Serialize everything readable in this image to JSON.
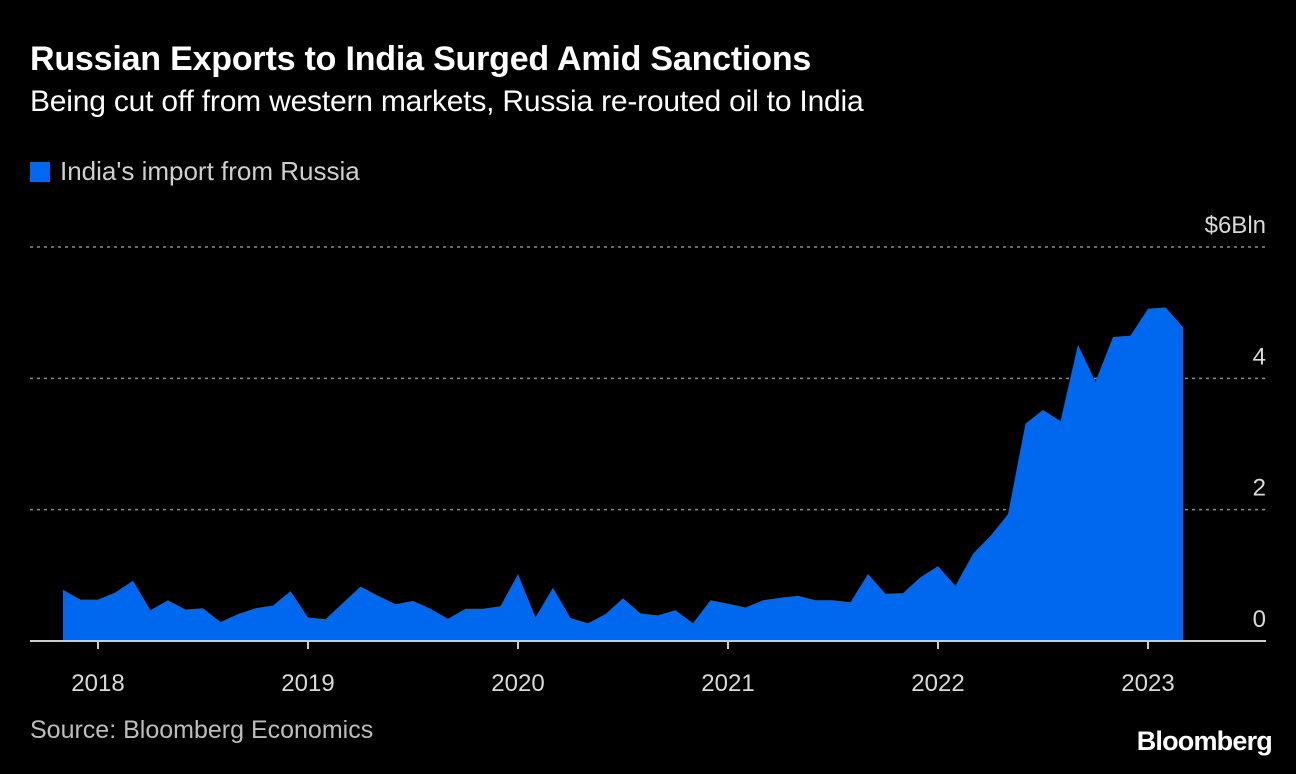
{
  "header": {
    "title": "Russian Exports to India Surged Amid Sanctions",
    "subtitle": "Being cut off from western markets, Russia re-routed oil to India"
  },
  "legend": {
    "label": "India's import from Russia"
  },
  "footer": {
    "source": "Source: Bloomberg Economics",
    "logo": "Bloomberg"
  },
  "colors": {
    "background": "#000000",
    "area": "#0068ee",
    "grid": "#8a8a8a",
    "axis": "#cccccc"
  },
  "chart_data": {
    "type": "area",
    "title": "Russian Exports to India Surged Amid Sanctions",
    "subtitle": "Being cut off from western markets, Russia re-routed oil to India",
    "series": [
      {
        "name": "India's import from Russia",
        "unit": "$Bln",
        "start_month": "2017-11",
        "values": [
          0.78,
          0.63,
          0.63,
          0.74,
          0.92,
          0.47,
          0.62,
          0.48,
          0.5,
          0.29,
          0.41,
          0.5,
          0.54,
          0.76,
          0.36,
          0.33,
          0.58,
          0.83,
          0.69,
          0.56,
          0.61,
          0.49,
          0.34,
          0.49,
          0.49,
          0.53,
          1.02,
          0.36,
          0.81,
          0.35,
          0.27,
          0.41,
          0.65,
          0.42,
          0.39,
          0.47,
          0.27,
          0.62,
          0.57,
          0.51,
          0.62,
          0.66,
          0.69,
          0.62,
          0.62,
          0.59,
          1.02,
          0.72,
          0.73,
          0.97,
          1.14,
          0.84,
          1.33,
          1.6,
          1.93,
          3.31,
          3.52,
          3.35,
          4.51,
          3.95,
          4.63,
          4.65,
          5.06,
          5.08,
          4.78
        ]
      }
    ],
    "x_tick_labels": [
      "2018",
      "2019",
      "2020",
      "2021",
      "2022",
      "2023"
    ],
    "y_tick_labels": [
      "$6Bln",
      "4",
      "2",
      "0"
    ],
    "y_ticks": [
      6,
      4,
      2,
      0
    ],
    "ylim": [
      0,
      6
    ],
    "xlabel": "",
    "ylabel": "",
    "grid": true
  }
}
